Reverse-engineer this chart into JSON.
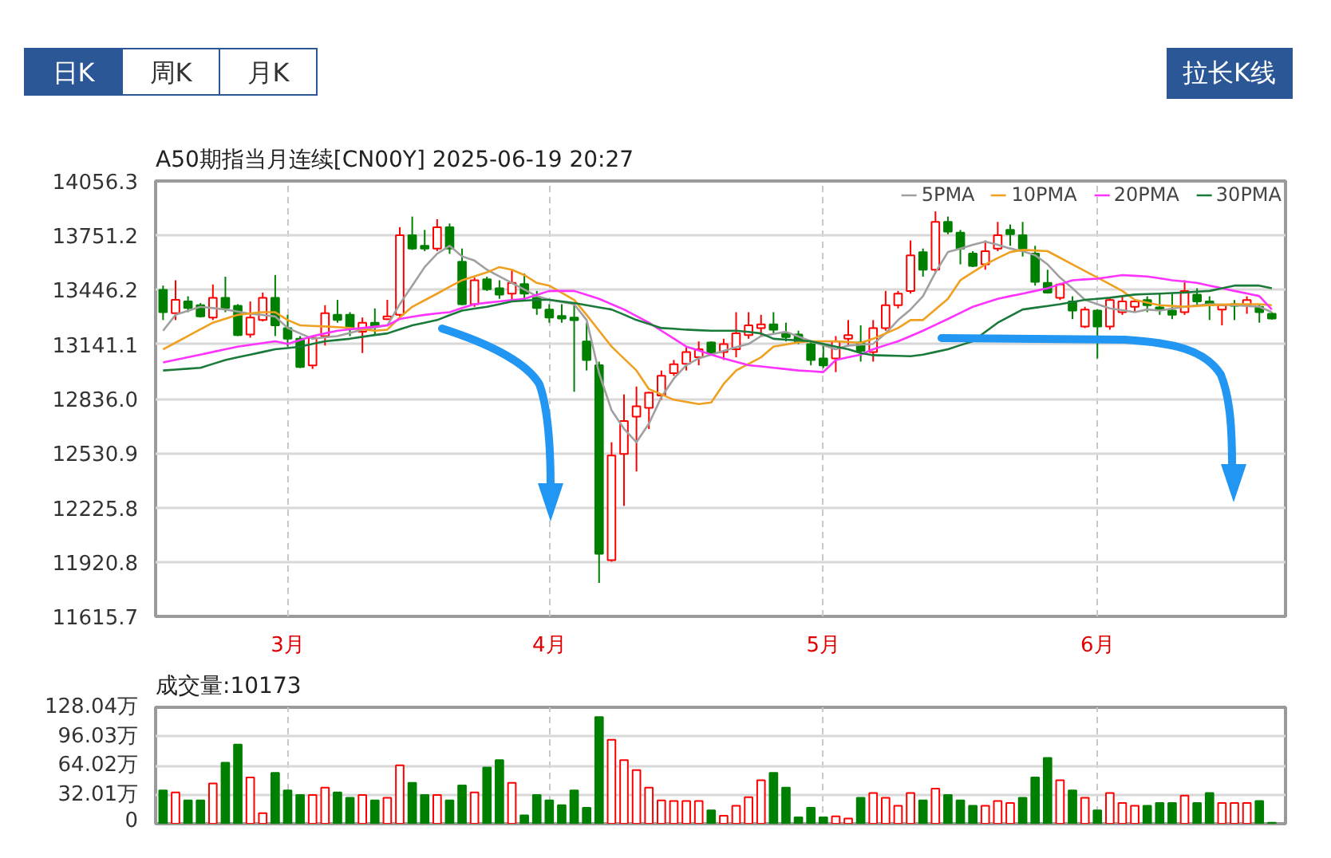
{
  "chart_data": [
    {
      "type": "candlestick",
      "title": "A50期指当月连续[CN00Y] 2025-06-19 20:27",
      "annotations": [
        "日K",
        "周K",
        "月K",
        "拉长K线"
      ],
      "categories": [
        null,
        null,
        null,
        null,
        null,
        null,
        null,
        null,
        null,
        null,
        "3月",
        null,
        null,
        null,
        null,
        null,
        null,
        null,
        null,
        null,
        null,
        null,
        null,
        null,
        null,
        null,
        null,
        null,
        null,
        null,
        null,
        "4月",
        null,
        null,
        null,
        null,
        null,
        null,
        null,
        null,
        null,
        null,
        null,
        null,
        null,
        null,
        null,
        null,
        null,
        null,
        null,
        null,
        null,
        "5月",
        null,
        null,
        null,
        null,
        null,
        null,
        null,
        null,
        null,
        null,
        null,
        null,
        null,
        null,
        null,
        null,
        null,
        null,
        null,
        null,
        null,
        "6月",
        null,
        null,
        null,
        null,
        null,
        null,
        null,
        null,
        null,
        null,
        null,
        null,
        null,
        null
      ],
      "ohlc": [
        [
          13446,
          13470,
          13277,
          13321
        ],
        [
          13315,
          13500,
          13277,
          13390
        ],
        [
          13381,
          13410,
          13321,
          13345
        ],
        [
          13360,
          13372,
          13291,
          13297
        ],
        [
          13291,
          13476,
          13277,
          13401
        ],
        [
          13401,
          13520,
          13321,
          13345
        ],
        [
          13357,
          13366,
          13187,
          13193
        ],
        [
          13196,
          13381,
          13178,
          13291
        ],
        [
          13277,
          13431,
          13270,
          13401
        ],
        [
          13401,
          13529,
          13187,
          13247
        ],
        [
          13232,
          13306,
          13128,
          13172
        ],
        [
          13172,
          13187,
          13008,
          13014
        ],
        [
          13023,
          13187,
          13003,
          13178
        ],
        [
          13187,
          13360,
          13134,
          13315
        ],
        [
          13306,
          13390,
          13262,
          13277
        ],
        [
          13306,
          13321,
          13187,
          13232
        ],
        [
          13211,
          13291,
          13092,
          13262
        ],
        [
          13262,
          13342,
          13193,
          13241
        ],
        [
          13282,
          13390,
          13277,
          13297
        ],
        [
          13306,
          13797,
          13291,
          13752
        ],
        [
          13752,
          13857,
          13670,
          13678
        ],
        [
          13693,
          13782,
          13663,
          13678
        ],
        [
          13678,
          13842,
          13663,
          13797
        ],
        [
          13797,
          13818,
          13648,
          13678
        ],
        [
          13604,
          13678,
          13360,
          13366
        ],
        [
          13366,
          13515,
          13351,
          13500
        ],
        [
          13505,
          13520,
          13440,
          13449
        ],
        [
          13455,
          13500,
          13396,
          13419
        ],
        [
          13425,
          13559,
          13390,
          13485
        ],
        [
          13479,
          13538,
          13390,
          13425
        ],
        [
          13401,
          13440,
          13306,
          13345
        ],
        [
          13336,
          13366,
          13262,
          13291
        ],
        [
          13300,
          13366,
          13262,
          13285
        ],
        [
          13291,
          13366,
          12875,
          13276
        ],
        [
          13157,
          13261,
          12994,
          13053
        ],
        [
          13024,
          13044,
          11803,
          11967
        ],
        [
          11931,
          12592,
          11922,
          12518
        ],
        [
          12527,
          12860,
          12235,
          12711
        ],
        [
          12735,
          12904,
          12428,
          12794
        ],
        [
          12785,
          12875,
          12666,
          12869
        ],
        [
          12854,
          12994,
          12830,
          12964
        ],
        [
          12979,
          13053,
          12964,
          13029
        ],
        [
          13032,
          13128,
          12994,
          13098
        ],
        [
          13068,
          13157,
          13023,
          13113
        ],
        [
          13151,
          13157,
          13083,
          13092
        ],
        [
          13098,
          13172,
          13053,
          13142
        ],
        [
          13113,
          13321,
          13068,
          13202
        ],
        [
          13193,
          13321,
          13172,
          13247
        ],
        [
          13232,
          13306,
          13187,
          13253
        ],
        [
          13253,
          13321,
          13202,
          13223
        ],
        [
          13202,
          13262,
          13157,
          13181
        ],
        [
          13196,
          13217,
          13142,
          13157
        ],
        [
          13142,
          13157,
          13023,
          13053
        ],
        [
          13062,
          13142,
          13008,
          13023
        ],
        [
          13062,
          13187,
          12985,
          13157
        ],
        [
          13172,
          13277,
          13128,
          13193
        ],
        [
          13151,
          13247,
          13044,
          13104
        ],
        [
          13098,
          13277,
          13044,
          13232
        ],
        [
          13232,
          13440,
          13217,
          13360
        ],
        [
          13360,
          13440,
          13342,
          13425
        ],
        [
          13440,
          13723,
          13425,
          13640
        ],
        [
          13657,
          13678,
          13520,
          13559
        ],
        [
          13559,
          13886,
          13544,
          13827
        ],
        [
          13827,
          13857,
          13758,
          13773
        ],
        [
          13767,
          13782,
          13589,
          13678
        ],
        [
          13649,
          13663,
          13574,
          13580
        ],
        [
          13589,
          13723,
          13559,
          13663
        ],
        [
          13678,
          13827,
          13663,
          13752
        ],
        [
          13782,
          13812,
          13693,
          13758
        ],
        [
          13752,
          13827,
          13633,
          13678
        ],
        [
          13649,
          13693,
          13470,
          13491
        ],
        [
          13485,
          13559,
          13425,
          13431
        ],
        [
          13401,
          13485,
          13389,
          13476
        ],
        [
          13381,
          13410,
          13282,
          13330
        ],
        [
          13241,
          13351,
          13232,
          13336
        ],
        [
          13330,
          13336,
          13062,
          13241
        ],
        [
          13241,
          13401,
          13223,
          13389
        ],
        [
          13321,
          13410,
          13306,
          13381
        ],
        [
          13351,
          13389,
          13321,
          13381
        ],
        [
          13389,
          13410,
          13321,
          13360
        ],
        [
          13348,
          13425,
          13306,
          13336
        ],
        [
          13330,
          13425,
          13282,
          13306
        ],
        [
          13321,
          13500,
          13306,
          13440
        ],
        [
          13419,
          13455,
          13351,
          13381
        ],
        [
          13381,
          13410,
          13277,
          13360
        ],
        [
          13336,
          13366,
          13247,
          13360
        ],
        [
          13366,
          13389,
          13277,
          13357
        ],
        [
          13360,
          13410,
          13312,
          13389
        ],
        [
          13351,
          13366,
          13262,
          13321
        ],
        [
          13312,
          13321,
          13280,
          13285
        ]
      ],
      "colors": [
        "#008000",
        "#ff0000",
        "#008000",
        "#008000",
        "#ff0000",
        "#008000",
        "#008000",
        "#ff0000",
        "#ff0000",
        "#008000",
        "#008000",
        "#008000",
        "#ff0000",
        "#ff0000",
        "#008000",
        "#008000",
        "#ff0000",
        "#008000",
        "#ff0000",
        "#ff0000",
        "#008000",
        "#008000",
        "#ff0000",
        "#008000",
        "#008000",
        "#ff0000",
        "#008000",
        "#008000",
        "#ff0000",
        "#008000",
        "#008000",
        "#008000",
        "#008000",
        "#008000",
        "#008000",
        "#008000",
        "#ff0000",
        "#ff0000",
        "#ff0000",
        "#ff0000",
        "#ff0000",
        "#ff0000",
        "#ff0000",
        "#ff0000",
        "#008000",
        "#ff0000",
        "#ff0000",
        "#ff0000",
        "#ff0000",
        "#008000",
        "#008000",
        "#008000",
        "#008000",
        "#008000",
        "#ff0000",
        "#ff0000",
        "#008000",
        "#ff0000",
        "#ff0000",
        "#ff0000",
        "#ff0000",
        "#008000",
        "#ff0000",
        "#008000",
        "#008000",
        "#008000",
        "#ff0000",
        "#ff0000",
        "#008000",
        "#008000",
        "#008000",
        "#008000",
        "#ff0000",
        "#008000",
        "#ff0000",
        "#008000",
        "#ff0000",
        "#ff0000",
        "#ff0000",
        "#008000",
        "#008000",
        "#008000",
        "#ff0000",
        "#008000",
        "#008000",
        "#ff0000",
        "#008000",
        "#ff0000",
        "#008000",
        "#008000"
      ],
      "series": [
        {
          "name": "5PMA",
          "type": "line",
          "color": "#a0a0a0",
          "values": [
            13217,
            13306,
            13329,
            13351,
            13344,
            13336,
            13324,
            13312,
            13305,
            13297,
            13232,
            13202,
            13172,
            13180,
            13187,
            13205,
            13223,
            13235,
            13247,
            13366,
            13470,
            13574,
            13649,
            13693,
            13634,
            13610,
            13559,
            13522,
            13485,
            13448,
            13411,
            13390,
            13378,
            13366,
            13277,
            12979,
            12771,
            12667,
            12592,
            12696,
            12845,
            12949,
            13024,
            13062,
            13083,
            13104,
            13124,
            13143,
            13187,
            13199,
            13211,
            13185,
            13158,
            13136,
            13113,
            13134,
            13139,
            13143,
            13202,
            13277,
            13336,
            13411,
            13544,
            13658,
            13678,
            13699,
            13717,
            13699,
            13678,
            13663,
            13640,
            13589,
            13515,
            13455,
            13390,
            13366,
            13342,
            13332,
            13321,
            13336,
            13330,
            13341,
            13351,
            13359,
            13366,
            13363,
            13360,
            13356,
            13351,
            13321
          ]
        },
        {
          "name": "10PMA",
          "type": "line",
          "color": "#f0a020",
          "values": [
            13113,
            13150,
            13187,
            13225,
            13262,
            13284,
            13306,
            13314,
            13321,
            13321,
            13277,
            13247,
            13244,
            13241,
            13237,
            13232,
            13225,
            13217,
            13223,
            13292,
            13351,
            13388,
            13425,
            13463,
            13500,
            13522,
            13544,
            13574,
            13559,
            13529,
            13485,
            13470,
            13430,
            13390,
            13306,
            13217,
            13128,
            13061,
            12994,
            12890,
            12860,
            12830,
            12818,
            12806,
            12815,
            12919,
            12994,
            13031,
            13068,
            13128,
            13140,
            13152,
            13158,
            13158,
            13158,
            13154,
            13149,
            13172,
            13202,
            13232,
            13277,
            13277,
            13337,
            13396,
            13500,
            13545,
            13589,
            13624,
            13658,
            13670,
            13667,
            13663,
            13626,
            13589,
            13552,
            13515,
            13478,
            13440,
            13390,
            13375,
            13360,
            13356,
            13351,
            13356,
            13360,
            13363,
            13366,
            13366,
            13366,
            13360
          ]
        },
        {
          "name": "20PMA",
          "type": "line",
          "color": "#ff33ff",
          "values": [
            13039,
            13054,
            13068,
            13083,
            13098,
            13113,
            13128,
            13138,
            13148,
            13158,
            13143,
            13165,
            13187,
            13202,
            13217,
            13225,
            13232,
            13240,
            13247,
            13283,
            13295,
            13306,
            13314,
            13321,
            13344,
            13366,
            13374,
            13381,
            13389,
            13396,
            13418,
            13440,
            13440,
            13440,
            13418,
            13396,
            13366,
            13336,
            13299,
            13262,
            13217,
            13173,
            13128,
            13106,
            13083,
            13062,
            13043,
            13024,
            13017,
            13009,
            13002,
            12994,
            12990,
            12985,
            13053,
            13068,
            13083,
            13113,
            13136,
            13158,
            13187,
            13217,
            13250,
            13283,
            13317,
            13351,
            13374,
            13396,
            13411,
            13425,
            13440,
            13455,
            13478,
            13500,
            13505,
            13509,
            13519,
            13529,
            13525,
            13521,
            13511,
            13500,
            13493,
            13485,
            13470,
            13455,
            13440,
            13426,
            13411,
            13336
          ]
        },
        {
          "name": "30PMA",
          "type": "line",
          "color": "#1a7a3a",
          "values": [
            12994,
            12999,
            13004,
            13009,
            13031,
            13053,
            13068,
            13083,
            13098,
            13113,
            13120,
            13128,
            13143,
            13158,
            13165,
            13172,
            13183,
            13193,
            13202,
            13225,
            13247,
            13262,
            13277,
            13304,
            13330,
            13341,
            13351,
            13366,
            13381,
            13386,
            13390,
            13390,
            13381,
            13372,
            13360,
            13348,
            13336,
            13307,
            13277,
            13255,
            13232,
            13228,
            13223,
            13220,
            13217,
            13217,
            13217,
            13210,
            13202,
            13172,
            13167,
            13163,
            13158,
            13143,
            13128,
            13113,
            13092,
            13080,
            13078,
            13076,
            13074,
            13083,
            13098,
            13113,
            13136,
            13158,
            13210,
            13262,
            13299,
            13336,
            13346,
            13356,
            13366,
            13378,
            13390,
            13396,
            13402,
            13411,
            13420,
            13423,
            13425,
            13428,
            13431,
            13436,
            13440,
            13455,
            13470,
            13470,
            13470,
            13455
          ]
        }
      ],
      "ylim": [
        11615.7,
        14056.3
      ],
      "yticks": [
        11615.7,
        11920.8,
        12225.8,
        12530.9,
        {
          "value": 12836.0,
          "label": "12836.0"
        },
        13141.1,
        13446.2,
        13751.2,
        14056.3
      ],
      "grid": true,
      "legend": "top right"
    },
    {
      "type": "bar",
      "title": "成交量:10173",
      "categories": [
        null,
        null,
        null,
        null,
        null,
        null,
        null,
        null,
        null,
        null,
        null,
        null,
        null,
        null,
        null,
        null,
        null,
        null,
        null,
        null,
        null,
        null,
        null,
        null,
        null,
        null,
        null,
        null,
        null,
        null,
        null,
        null,
        null,
        null,
        null,
        null,
        null,
        null,
        null,
        null,
        null,
        null,
        null,
        null,
        null,
        null,
        null,
        null,
        null,
        null,
        null,
        null,
        null,
        null,
        null,
        null,
        null,
        null,
        null,
        null,
        null,
        null,
        null,
        null,
        null,
        null,
        null,
        null,
        null,
        null,
        null,
        null,
        null,
        null,
        null,
        null,
        null,
        null,
        null,
        null,
        null,
        null,
        null,
        null,
        null,
        null,
        null,
        null,
        null,
        null
      ],
      "values": [
        36.7,
        34.4,
        25.7,
        25.7,
        44.3,
        67,
        87,
        50.8,
        11.7,
        56,
        36.7,
        31.5,
        31.5,
        39.7,
        34.4,
        28.6,
        31.5,
        25.7,
        28.6,
        64.2,
        44.9,
        31.5,
        31.5,
        25.7,
        42,
        34.4,
        61.8,
        70,
        44.9,
        9.3,
        31.5,
        25.7,
        20.4,
        36.7,
        17.5,
        117.3,
        92.2,
        70,
        58.9,
        39.7,
        25.7,
        25.1,
        25.1,
        25.1,
        14.6,
        8.8,
        19.8,
        29.2,
        47.8,
        56,
        39.7,
        7,
        17.5,
        7,
        8.2,
        5.8,
        28.6,
        33.8,
        28.6,
        19.8,
        33.8,
        25.7,
        38.5,
        31.5,
        25.7,
        19.8,
        19.8,
        25.1,
        22.8,
        28.6,
        50.8,
        72.3,
        47.8,
        36.7,
        28.6,
        14.6,
        33.8,
        22.8,
        19.8,
        19.8,
        22.8,
        22.8,
        30.9,
        22.8,
        33.8,
        22.8,
        22.8,
        22.8,
        25.1,
        1.0173
      ],
      "colors": [
        "#008000",
        "#ff0000",
        "#008000",
        "#008000",
        "#ff0000",
        "#008000",
        "#008000",
        "#ff0000",
        "#ff0000",
        "#008000",
        "#008000",
        "#008000",
        "#ff0000",
        "#ff0000",
        "#008000",
        "#008000",
        "#ff0000",
        "#008000",
        "#ff0000",
        "#ff0000",
        "#008000",
        "#008000",
        "#ff0000",
        "#008000",
        "#008000",
        "#ff0000",
        "#008000",
        "#008000",
        "#ff0000",
        "#008000",
        "#008000",
        "#008000",
        "#008000",
        "#008000",
        "#008000",
        "#008000",
        "#ff0000",
        "#ff0000",
        "#ff0000",
        "#ff0000",
        "#ff0000",
        "#ff0000",
        "#ff0000",
        "#ff0000",
        "#008000",
        "#ff0000",
        "#ff0000",
        "#ff0000",
        "#ff0000",
        "#008000",
        "#008000",
        "#008000",
        "#008000",
        "#008000",
        "#ff0000",
        "#ff0000",
        "#008000",
        "#ff0000",
        "#ff0000",
        "#ff0000",
        "#ff0000",
        "#008000",
        "#ff0000",
        "#008000",
        "#008000",
        "#008000",
        "#ff0000",
        "#ff0000",
        "#ff0000",
        "#008000",
        "#008000",
        "#008000",
        "#ff0000",
        "#008000",
        "#ff0000",
        "#008000",
        "#ff0000",
        "#ff0000",
        "#ff0000",
        "#008000",
        "#008000",
        "#008000",
        "#ff0000",
        "#008000",
        "#008000",
        "#ff0000",
        "#ff0000",
        "#ff0000",
        "#008000",
        "#008000"
      ],
      "ylim": [
        0,
        128.04
      ],
      "yticks": [
        0,
        {
          "value": 32.01,
          "label": "32.01万"
        },
        {
          "value": 64.02,
          "label": "64.02万"
        },
        {
          "value": 96.03,
          "label": "96.03万"
        },
        {
          "value": 128.04,
          "label": "128.04万"
        }
      ],
      "grid": true,
      "tick_labels": "y"
    }
  ]
}
